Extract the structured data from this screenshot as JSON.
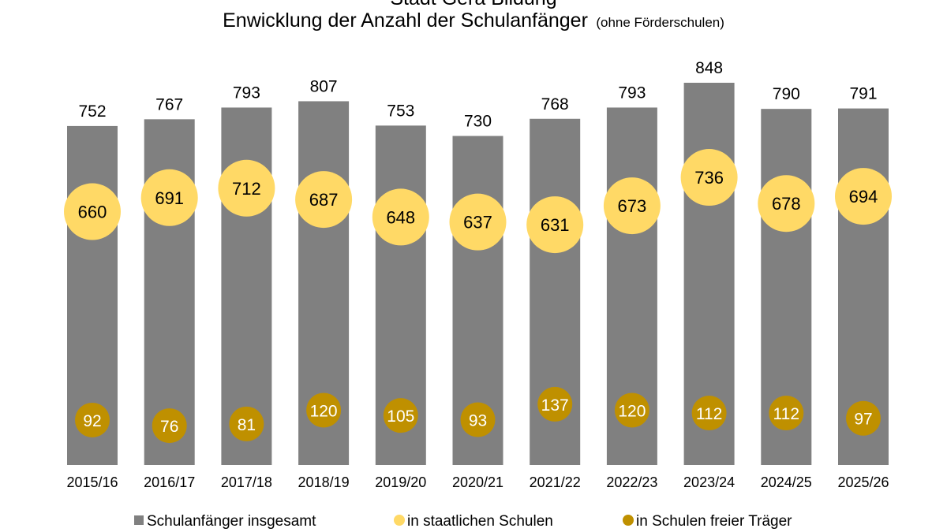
{
  "chart_data": {
    "type": "bar",
    "title": "Stadt Gera Bildung",
    "subtitle_main": "Enwicklung der Anzahl der Schulanfänger",
    "subtitle_note": "(ohne Förderschulen)",
    "categories": [
      "2015/16",
      "2016/17",
      "2017/18",
      "2018/19",
      "2019/20",
      "2020/21",
      "2021/22",
      "2022/23",
      "2023/24",
      "2024/25",
      "2025/26"
    ],
    "series": [
      {
        "name": "Schulanfänger insgesamt",
        "kind": "bar",
        "color": "#808080",
        "values": [
          752,
          767,
          793,
          807,
          753,
          730,
          768,
          793,
          848,
          790,
          791
        ]
      },
      {
        "name": "in staatlichen Schulen",
        "kind": "bubble",
        "color": "#FFD966",
        "values": [
          660,
          691,
          712,
          687,
          648,
          637,
          631,
          673,
          736,
          678,
          694
        ]
      },
      {
        "name": "in Schulen freier Träger",
        "kind": "bubble",
        "color": "#BF9000",
        "values": [
          92,
          76,
          81,
          120,
          105,
          93,
          137,
          120,
          112,
          112,
          97
        ]
      }
    ],
    "ylim": [
      0,
      900
    ],
    "grid": false,
    "legend_position": "bottom"
  }
}
